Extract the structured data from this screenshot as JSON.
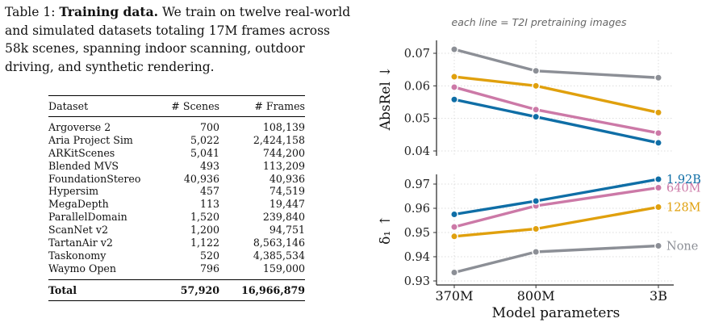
{
  "caption": {
    "label": "Table 1:",
    "title": "Training data.",
    "body": "We train on twelve real-world and simulated datasets totaling 17M frames across 58k scenes, spanning indoor scanning, outdoor driving, and synthetic rendering."
  },
  "table": {
    "headers": [
      "Dataset",
      "# Scenes",
      "# Frames"
    ],
    "rows": [
      [
        "Argoverse 2",
        "700",
        "108,139"
      ],
      [
        "Aria Project Sim",
        "5,022",
        "2,424,158"
      ],
      [
        "ARKitScenes",
        "5,041",
        "744,200"
      ],
      [
        "Blended MVS",
        "493",
        "113,209"
      ],
      [
        "FoundationStereo",
        "40,936",
        "40,936"
      ],
      [
        "Hypersim",
        "457",
        "74,519"
      ],
      [
        "MegaDepth",
        "113",
        "19,447"
      ],
      [
        "ParallelDomain",
        "1,520",
        "239,840"
      ],
      [
        "ScanNet v2",
        "1,200",
        "94,751"
      ],
      [
        "TartanAir v2",
        "1,122",
        "8,563,146"
      ],
      [
        "Taskonomy",
        "520",
        "4,385,534"
      ],
      [
        "Waymo Open",
        "796",
        "159,000"
      ]
    ],
    "total": [
      "Total",
      "57,920",
      "16,966,879"
    ]
  },
  "chart_data": [
    {
      "type": "line",
      "subtitle": "each line = T2I pretraining images",
      "ylabel": "AbsRel ↓",
      "x": [
        "370M",
        "800M",
        "3B"
      ],
      "ylim": [
        0.04,
        0.072
      ],
      "yticks": [
        "0.04",
        "0.05",
        "0.06",
        "0.07"
      ],
      "grid": true,
      "series": [
        {
          "name": "None",
          "color": "#8c8f96",
          "values": [
            0.0712,
            0.0646,
            0.0625
          ]
        },
        {
          "name": "128M",
          "color": "#e0a00d",
          "values": [
            0.0628,
            0.06,
            0.0518
          ]
        },
        {
          "name": "640M",
          "color": "#cc79a7",
          "values": [
            0.0596,
            0.0527,
            0.0455
          ]
        },
        {
          "name": "1.92B",
          "color": "#0f6ea6",
          "values": [
            0.0558,
            0.0505,
            0.0425
          ]
        }
      ]
    },
    {
      "type": "line",
      "ylabel": "δ₁ ↑",
      "xlabel": "Model parameters",
      "x": [
        "370M",
        "800M",
        "3B"
      ],
      "ylim": [
        0.929,
        0.974
      ],
      "yticks": [
        "0.93",
        "0.94",
        "0.95",
        "0.96",
        "0.97"
      ],
      "grid": true,
      "legend": "right-end labels",
      "series": [
        {
          "name": "None",
          "color": "#8c8f96",
          "values": [
            0.9335,
            0.942,
            0.9445
          ]
        },
        {
          "name": "128M",
          "color": "#e0a00d",
          "values": [
            0.9484,
            0.9515,
            0.9605
          ]
        },
        {
          "name": "640M",
          "color": "#cc79a7",
          "values": [
            0.9523,
            0.961,
            0.9685
          ]
        },
        {
          "name": "1.92B",
          "color": "#0f6ea6",
          "values": [
            0.9575,
            0.963,
            0.972
          ]
        }
      ]
    }
  ]
}
